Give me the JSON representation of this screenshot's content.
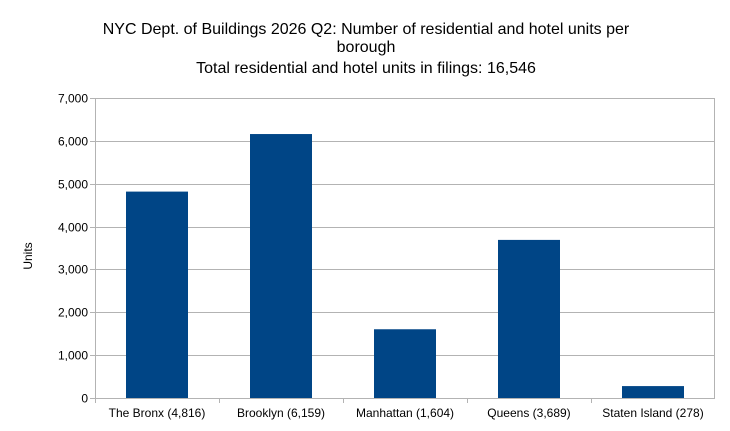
{
  "chart_data": {
    "type": "bar",
    "title_lines": [
      "NYC Dept. of Buildings 2026 Q2: Number of residential and hotel units per",
      "borough",
      "Total residential and hotel units in filings: 16,546"
    ],
    "xlabel": "",
    "ylabel": "Units",
    "ylim": [
      0,
      7000
    ],
    "y_ticks": [
      0,
      1000,
      2000,
      3000,
      4000,
      5000,
      6000,
      7000
    ],
    "y_tick_labels": [
      "0",
      "1,000",
      "2,000",
      "3,000",
      "4,000",
      "5,000",
      "6,000",
      "7,000"
    ],
    "grid": true,
    "legend": "none",
    "categories": [
      "The Bronx (4,816)",
      "Brooklyn (6,159)",
      "Manhattan (1,604)",
      "Queens (3,689)",
      "Staten Island (278)"
    ],
    "values": [
      4816,
      6159,
      1604,
      3689,
      278
    ],
    "bar_color": "#004586",
    "grid_color": "#b3b3b3"
  }
}
